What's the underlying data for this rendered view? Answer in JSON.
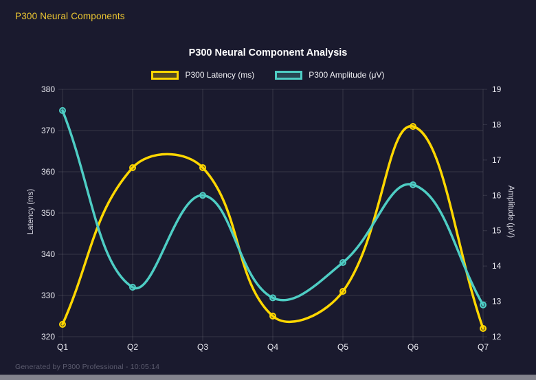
{
  "page": {
    "title": "P300 Neural Components",
    "footer": "Generated by P300 Professional - 10:05:14"
  },
  "colors": {
    "background": "#1a1a2e",
    "header_accent": "#eec832",
    "grid": "rgba(255,255,255,0.12)",
    "tick_text": "#e9e9f0",
    "latency": "#ffd700",
    "amplitude": "#4ecdc4"
  },
  "chart_data": {
    "type": "line",
    "title": "P300 Neural Component Analysis",
    "categories": [
      "Q1",
      "Q2",
      "Q3",
      "Q4",
      "Q5",
      "Q6",
      "Q7"
    ],
    "series": [
      {
        "name": "P300 Latency (ms)",
        "axis": "left",
        "color": "#ffd700",
        "values": [
          323,
          361,
          361,
          325,
          331,
          371,
          322
        ]
      },
      {
        "name": "P300 Amplitude (μV)",
        "axis": "right",
        "color": "#4ecdc4",
        "values": [
          18.4,
          13.4,
          16.0,
          13.1,
          14.1,
          16.3,
          12.9
        ]
      }
    ],
    "left_axis": {
      "label": "Latency (ms)",
      "min": 320,
      "max": 380,
      "step": 10,
      "ticks": [
        380,
        370,
        360,
        350,
        340,
        330,
        320
      ]
    },
    "right_axis": {
      "label": "Amplitude (μV)",
      "min": 12,
      "max": 19,
      "step": 1,
      "ticks": [
        19,
        18,
        17,
        16,
        15,
        14,
        13,
        12
      ]
    },
    "grid": true,
    "legend_position": "top",
    "line_tension": 0.4
  }
}
